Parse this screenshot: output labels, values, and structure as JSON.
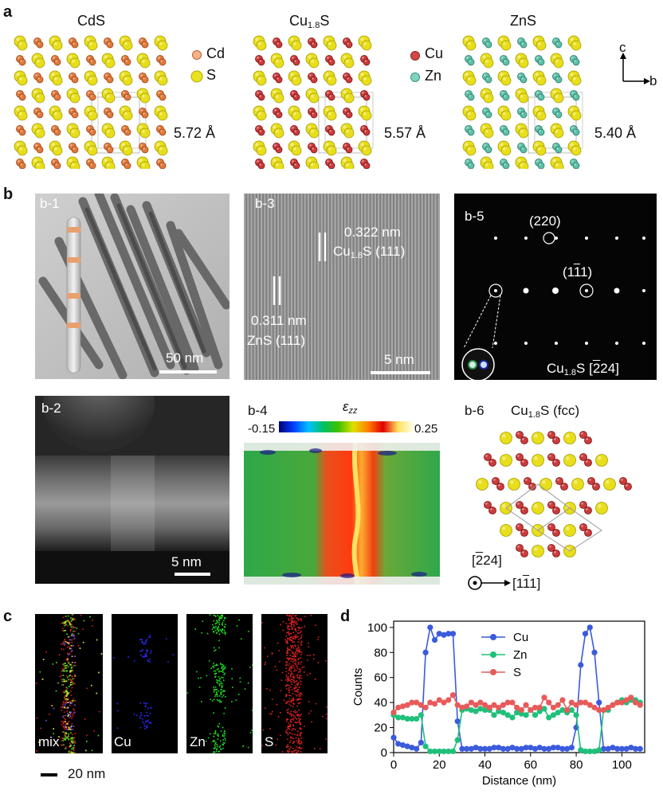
{
  "panel_a": {
    "letter": "a",
    "structures": [
      {
        "title": "CdS",
        "lattice": "5.72 Å"
      },
      {
        "title": "Cu1.8S",
        "lattice": "5.57 Å"
      },
      {
        "title": "ZnS",
        "lattice": "5.40 Å"
      }
    ],
    "legend_cds": [
      {
        "name": "Cd",
        "color": "#e07a3c"
      },
      {
        "name": "S",
        "color": "#e8e020"
      }
    ],
    "legend_cu": [
      {
        "name": "Cu",
        "color": "#cc3b3b"
      },
      {
        "name": "Zn",
        "color": "#5cc0a8"
      }
    ],
    "axes": {
      "up": "c",
      "right": "b"
    }
  },
  "panel_b": {
    "letter": "b",
    "b1": {
      "label": "b-1",
      "scale": "50 nm"
    },
    "b2": {
      "label": "b-2",
      "scale": "5 nm"
    },
    "b3": {
      "label": "b-3",
      "d1": "0.322 nm",
      "d1_phase": "Cu1.8S (111)",
      "d2": "0.311 nm",
      "d2_phase": "ZnS (111)",
      "scale": "5 nm"
    },
    "b4": {
      "label": "b-4",
      "colorbar_title": "εzz",
      "cmin": "-0.15",
      "cmax": "0.25"
    },
    "b5": {
      "label": "b-5",
      "spot1": "(220)",
      "spot2": "(11̄1)",
      "zone": "Cu1.8S [2̄24]"
    },
    "b6": {
      "label": "b-6",
      "title": "Cu1.8S (fcc)",
      "zone_axis": "[2̄24]",
      "direction": "[11̄1]"
    }
  },
  "panel_c": {
    "letter": "c",
    "maps": [
      "mix",
      "Cu",
      "Zn",
      "S"
    ],
    "scale": "20 nm"
  },
  "panel_d": {
    "letter": "d",
    "colors": {
      "Cu": "#3a5bdc",
      "Zn": "#1fc07a",
      "S": "#e85a5a"
    }
  },
  "chart_data": {
    "type": "line",
    "title": "",
    "xlabel": "Distance (nm)",
    "ylabel": "Counts",
    "xlim": [
      0,
      110
    ],
    "ylim": [
      0,
      105
    ],
    "xticks": [
      0,
      20,
      40,
      60,
      80,
      100
    ],
    "yticks": [
      0,
      20,
      40,
      60,
      80,
      100
    ],
    "legend_position": "top-center",
    "x": [
      0,
      2,
      4,
      6,
      8,
      10,
      12,
      14,
      16,
      18,
      20,
      22,
      24,
      26,
      28,
      30,
      32,
      34,
      36,
      38,
      40,
      42,
      44,
      46,
      48,
      50,
      52,
      54,
      56,
      58,
      60,
      62,
      64,
      66,
      68,
      70,
      72,
      74,
      76,
      78,
      80,
      82,
      84,
      86,
      88,
      90,
      92,
      94,
      96,
      98,
      100,
      102,
      104,
      106,
      108
    ],
    "series": [
      {
        "name": "Cu",
        "values": [
          12,
          7,
          6,
          5,
          4,
          3,
          8,
          80,
          100,
          90,
          95,
          94,
          95,
          95,
          25,
          3,
          3,
          3,
          4,
          3,
          3,
          3,
          4,
          4,
          3,
          3,
          4,
          3,
          3,
          4,
          4,
          3,
          4,
          3,
          3,
          4,
          4,
          3,
          3,
          4,
          20,
          70,
          95,
          100,
          80,
          40,
          3,
          3,
          4,
          3,
          3,
          3,
          4,
          3,
          3
        ]
      },
      {
        "name": "Zn",
        "values": [
          30,
          28,
          28,
          27,
          27,
          27,
          30,
          5,
          1,
          1,
          1,
          1,
          1,
          1,
          10,
          34,
          35,
          34,
          33,
          35,
          34,
          34,
          30,
          33,
          32,
          30,
          28,
          32,
          31,
          30,
          34,
          30,
          33,
          35,
          28,
          30,
          32,
          34,
          32,
          34,
          30,
          2,
          1,
          1,
          1,
          2,
          34,
          34,
          38,
          40,
          42,
          40,
          42,
          42,
          40
        ]
      },
      {
        "name": "S",
        "values": [
          32,
          36,
          37,
          38,
          40,
          40,
          38,
          36,
          40,
          39,
          42,
          40,
          42,
          46,
          38,
          36,
          37,
          40,
          38,
          40,
          38,
          36,
          38,
          36,
          38,
          40,
          40,
          36,
          34,
          38,
          34,
          36,
          36,
          44,
          40,
          36,
          38,
          42,
          34,
          40,
          38,
          40,
          40,
          38,
          36,
          34,
          34,
          36,
          38,
          40,
          40,
          42,
          44,
          40,
          38
        ]
      }
    ]
  }
}
